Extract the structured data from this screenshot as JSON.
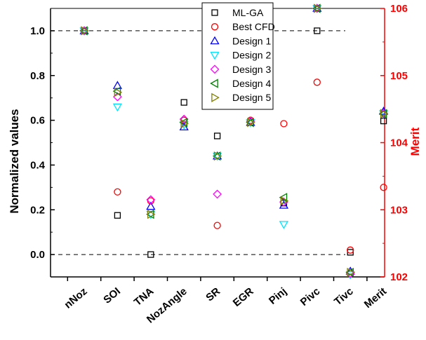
{
  "chart_data": {
    "type": "scatter",
    "categories": [
      "nNoz",
      "SOI",
      "TNA",
      "NozAngle",
      "SR",
      "EGR",
      "Pinj",
      "Pivc",
      "Tivc",
      "Merit"
    ],
    "ylabel": "Normalized values",
    "ylabel_right": "Merit",
    "ylim": [
      -0.1,
      1.1
    ],
    "yticks": [
      "0.0",
      "0.2",
      "0.4",
      "0.6",
      "0.8",
      "1.0"
    ],
    "ylim_right": [
      102,
      106
    ],
    "yticks_right": [
      "102",
      "103",
      "104",
      "105",
      "106"
    ],
    "reference_lines": [
      0.0,
      1.0
    ],
    "legend_position": "top-center",
    "series": [
      {
        "name": "ML-GA",
        "marker": "square",
        "color": "#000000",
        "values": [
          1.0,
          0.175,
          0.0,
          0.68,
          0.53,
          0.59,
          0.23,
          1.0,
          0.01,
          0.597
        ]
      },
      {
        "name": "Best CFD",
        "marker": "circle",
        "color": "#ff0000",
        "values": [
          1.0,
          0.28,
          0.24,
          0.6,
          0.13,
          0.6,
          0.585,
          0.77,
          0.02,
          0.3
        ]
      },
      {
        "name": "Design 1",
        "marker": "triangle-up",
        "color": "#0000ff",
        "values": [
          1.0,
          0.755,
          0.215,
          0.57,
          0.44,
          0.59,
          0.22,
          1.1,
          -0.075,
          0.64
        ]
      },
      {
        "name": "Design 2",
        "marker": "triangle-down",
        "color": "#00e5ff",
        "values": [
          1.0,
          0.66,
          0.18,
          0.58,
          0.44,
          0.59,
          0.135,
          1.1,
          -0.09,
          0.63
        ]
      },
      {
        "name": "Design 3",
        "marker": "diamond",
        "color": "#ff00ff",
        "values": [
          1.0,
          0.705,
          0.245,
          0.605,
          0.27,
          0.595,
          0.235,
          1.1,
          -0.085,
          0.63
        ]
      },
      {
        "name": "Design 4",
        "marker": "triangle-left",
        "color": "#008000",
        "values": [
          1.0,
          0.73,
          0.18,
          0.59,
          0.44,
          0.59,
          0.255,
          1.1,
          -0.08,
          0.63
        ]
      },
      {
        "name": "Design 5",
        "marker": "triangle-right",
        "color": "#808000",
        "values": [
          1.0,
          0.725,
          0.18,
          0.585,
          0.44,
          0.59,
          0.24,
          1.1,
          -0.08,
          0.63
        ]
      }
    ]
  }
}
